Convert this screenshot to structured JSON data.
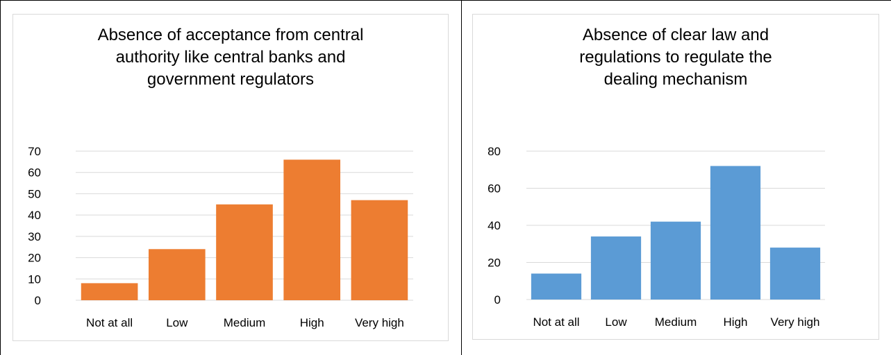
{
  "chart_data": [
    {
      "type": "bar",
      "title": "Absence of acceptance from central\nauthority like central banks and\ngovernment regulators",
      "categories": [
        "Not at all",
        "Low",
        "Medium",
        "High",
        "Very high"
      ],
      "values": [
        8,
        24,
        45,
        66,
        47
      ],
      "ylim": [
        0,
        70
      ],
      "yticks": [
        0,
        10,
        20,
        30,
        40,
        50,
        60,
        70
      ],
      "xlabel": "",
      "ylabel": "",
      "grid": true,
      "legend": "none",
      "color": "#ED7D31"
    },
    {
      "type": "bar",
      "title": "Absence of clear law and\nregulations to regulate the\ndealing mechanism",
      "categories": [
        "Not at all",
        "Low",
        "Medium",
        "High",
        "Very high"
      ],
      "values": [
        14,
        34,
        42,
        72,
        28
      ],
      "ylim": [
        0,
        80
      ],
      "yticks": [
        0,
        20,
        40,
        60,
        80
      ],
      "xlabel": "",
      "ylabel": "",
      "grid": true,
      "legend": "none",
      "color": "#5B9BD5"
    }
  ]
}
